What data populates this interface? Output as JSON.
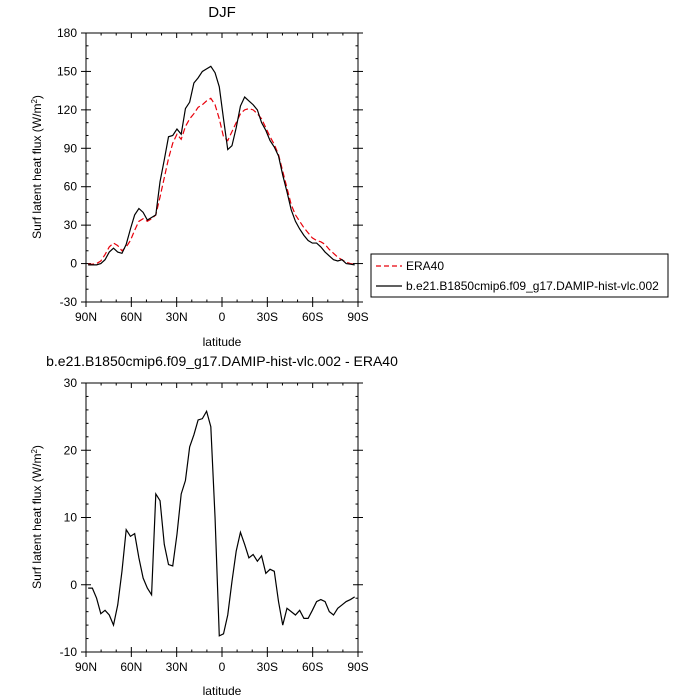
{
  "chart_data": [
    {
      "type": "line",
      "title": "DJF",
      "xlabel": "latitude",
      "ylabel": "Surf latent heat flux (W/m",
      "ylabel_sup": "2",
      "ylabel_close": ")",
      "xlim": [
        90,
        -90
      ],
      "ylim": [
        -30,
        180
      ],
      "xtick_values": [
        90,
        60,
        30,
        0,
        -30,
        -60,
        -90
      ],
      "xtick_labels": [
        "90N",
        "60N",
        "30N",
        "0",
        "30S",
        "60S",
        "90S"
      ],
      "ytick_values": [
        -30,
        0,
        30,
        60,
        90,
        120,
        150,
        180
      ],
      "ytick_labels": [
        "-30",
        "0",
        "30",
        "60",
        "90",
        "120",
        "150",
        "180"
      ],
      "legend": {
        "placement": "outside-right",
        "entries": [
          "ERA40",
          "b.e21.B1850cmip6.f09_g17.DAMIP-hist-vlc.002"
        ]
      },
      "series": [
        {
          "name": "ERA40",
          "color": "#e8000b",
          "dash": true,
          "x": [
            88.6,
            85.8,
            83.0,
            80.2,
            77.4,
            74.6,
            71.8,
            69.0,
            66.2,
            63.4,
            60.6,
            57.8,
            55.0,
            52.2,
            49.4,
            46.6,
            43.8,
            41.0,
            38.2,
            35.4,
            32.6,
            29.8,
            27.0,
            24.2,
            21.4,
            18.6,
            15.8,
            13.0,
            10.2,
            7.4,
            4.6,
            1.8,
            -1.0,
            -3.8,
            -6.6,
            -9.4,
            -12.2,
            -15.0,
            -17.8,
            -20.6,
            -23.4,
            -26.2,
            -29.0,
            -31.8,
            -34.6,
            -37.4,
            -40.2,
            -43.0,
            -45.8,
            -48.6,
            -51.4,
            -54.2,
            -57.0,
            -59.8,
            -62.6,
            -65.4,
            -68.2,
            -71.0,
            -73.8,
            -76.6,
            -79.4,
            -82.2,
            -85.0,
            -87.8
          ],
          "y": [
            -0.5,
            -0.5,
            0,
            2,
            7,
            13,
            16,
            14,
            10,
            13,
            18,
            26,
            33,
            35,
            33,
            35,
            38,
            52,
            67,
            82,
            94,
            101,
            97,
            107,
            113,
            117,
            122,
            124,
            127,
            129,
            124,
            113,
            99,
            96,
            103,
            110,
            117,
            120,
            121,
            120,
            117,
            113,
            106,
            99,
            93,
            85,
            72,
            59,
            46,
            38,
            33,
            28,
            24,
            20,
            18,
            17,
            15,
            11,
            8,
            5,
            3,
            1,
            0,
            -0.5
          ]
        },
        {
          "name": "b.e21.B1850cmip6.f09_g17.DAMIP-hist-vlc.002",
          "color": "#000000",
          "dash": false,
          "x": [
            88.6,
            85.8,
            83.0,
            80.2,
            77.4,
            74.6,
            71.8,
            69.0,
            66.2,
            63.4,
            60.6,
            57.8,
            55.0,
            52.2,
            49.4,
            46.6,
            43.8,
            41.0,
            38.2,
            35.4,
            32.6,
            29.8,
            27.0,
            24.2,
            21.4,
            18.6,
            15.8,
            13.0,
            10.2,
            7.4,
            4.6,
            1.8,
            -1.0,
            -3.8,
            -6.6,
            -9.4,
            -12.2,
            -15.0,
            -17.8,
            -20.6,
            -23.4,
            -26.2,
            -29.0,
            -31.8,
            -34.6,
            -37.4,
            -40.2,
            -43.0,
            -45.8,
            -48.6,
            -51.4,
            -54.2,
            -57.0,
            -59.8,
            -62.6,
            -65.4,
            -68.2,
            -71.0,
            -73.8,
            -76.6,
            -79.4,
            -82.2,
            -85.0,
            -87.8
          ],
          "y": [
            -1,
            -1,
            -1,
            0,
            3,
            9,
            12,
            9,
            8,
            15,
            27,
            38,
            43,
            40,
            34,
            36,
            38,
            64,
            81,
            99,
            100,
            105,
            101,
            121,
            126,
            141,
            145,
            150,
            152,
            154,
            149,
            138,
            113,
            89,
            92,
            106,
            123,
            130,
            127,
            124,
            120,
            110,
            104,
            96,
            91,
            84,
            69,
            56,
            42,
            33,
            27,
            22,
            18,
            16,
            16,
            13,
            9,
            6,
            3,
            2,
            3,
            0,
            -0.5,
            -1
          ]
        }
      ]
    },
    {
      "type": "line",
      "title": "b.e21.B1850cmip6.f09_g17.DAMIP-hist-vlc.002 - ERA40",
      "xlabel": "latitude",
      "ylabel": "Surf latent heat flux (W/m",
      "ylabel_sup": "2",
      "ylabel_close": ")",
      "xlim": [
        90,
        -90
      ],
      "ylim": [
        -10,
        30
      ],
      "xtick_values": [
        90,
        60,
        30,
        0,
        -30,
        -60,
        -90
      ],
      "xtick_labels": [
        "90N",
        "60N",
        "30N",
        "0",
        "30S",
        "60S",
        "90S"
      ],
      "ytick_values": [
        -10,
        0,
        10,
        20,
        30
      ],
      "ytick_labels": [
        "-10",
        "0",
        "10",
        "20",
        "30"
      ],
      "series": [
        {
          "color": "#000000",
          "dash": false,
          "x": [
            88.6,
            85.8,
            83.0,
            80.2,
            77.4,
            74.6,
            71.8,
            69.0,
            66.2,
            63.4,
            60.6,
            57.8,
            55.0,
            52.2,
            49.4,
            46.6,
            43.8,
            41.0,
            38.2,
            35.4,
            32.6,
            29.8,
            27.0,
            24.2,
            21.4,
            18.6,
            15.8,
            13.0,
            10.2,
            7.4,
            4.6,
            1.8,
            -1.0,
            -3.8,
            -6.6,
            -9.4,
            -12.2,
            -15.0,
            -17.8,
            -20.6,
            -23.4,
            -26.2,
            -29.0,
            -31.8,
            -34.6,
            -37.4,
            -40.2,
            -43.0,
            -45.8,
            -48.6,
            -51.4,
            -54.2,
            -57.0,
            -59.8,
            -62.6,
            -65.4,
            -68.2,
            -71.0,
            -73.8,
            -76.6,
            -79.4,
            -82.2,
            -85.0,
            -87.8
          ],
          "y": [
            -0.5,
            -0.5,
            -2,
            -4.3,
            -3.8,
            -4.5,
            -6,
            -3,
            2,
            8.2,
            7.2,
            7.6,
            4,
            1,
            -0.5,
            -1.5,
            13.5,
            12.5,
            6,
            3,
            2.8,
            7.5,
            13.5,
            15.5,
            20.5,
            22.3,
            24.5,
            24.7,
            25.8,
            23.5,
            10,
            -7.6,
            -7.3,
            -4.5,
            0.5,
            5,
            7.8,
            6,
            4,
            4.5,
            3.5,
            4.3,
            1.7,
            2.3,
            2.0,
            -2.5,
            -6,
            -3.5,
            -4,
            -4.5,
            -3.8,
            -5,
            -5,
            -3.8,
            -2.5,
            -2.2,
            -2.5,
            -4,
            -4.5,
            -3.5,
            -3,
            -2.5,
            -2.2,
            -1.8
          ]
        }
      ]
    }
  ]
}
